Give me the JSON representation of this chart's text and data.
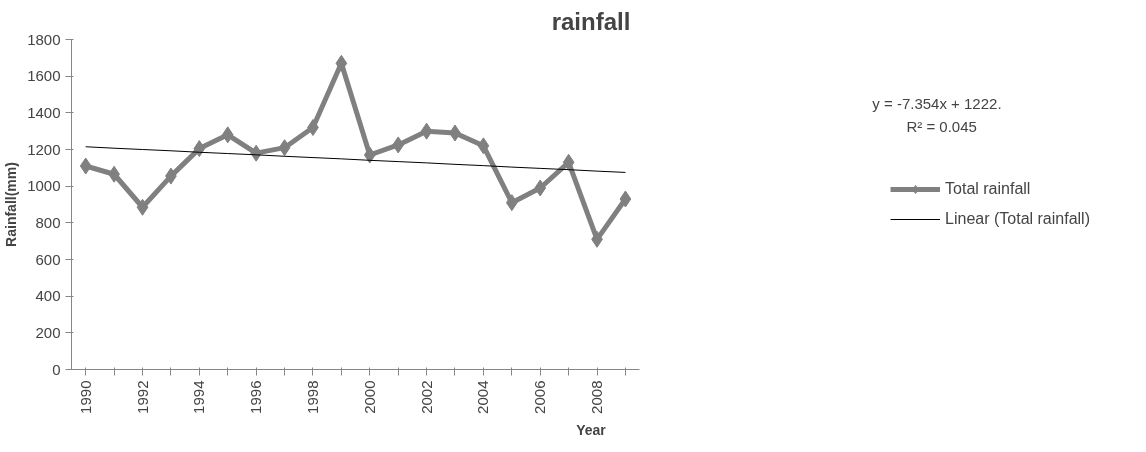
{
  "chart_data": {
    "type": "line",
    "title": "rainfall",
    "xlabel": "Year",
    "ylabel": "Rainfall(mm)",
    "categories": [
      "1990",
      null,
      "1992",
      null,
      "1994",
      null,
      "1996",
      null,
      "1998",
      null,
      "2000",
      null,
      "2002",
      null,
      "2004",
      null,
      "2006",
      null,
      "2008",
      null
    ],
    "series": [
      {
        "name": "Total rainfall",
        "color": "#808080",
        "marker": "diamond",
        "values": [
          1110,
          1065,
          885,
          1055,
          1205,
          1280,
          1180,
          1210,
          1320,
          1670,
          1170,
          1225,
          1300,
          1290,
          1220,
          910,
          990,
          1130,
          710,
          930
        ]
      },
      {
        "name": "Linear (Total rainfall)",
        "color": "#000000",
        "marker": "none",
        "values": [
          1215,
          1207,
          1200,
          1193,
          1185,
          1178,
          1171,
          1163,
          1156,
          1149,
          1141,
          1134,
          1127,
          1119,
          1112,
          1104,
          1097,
          1090,
          1082,
          1075
        ]
      }
    ],
    "ylim": [
      0,
      1800
    ],
    "yticks": [
      0,
      200,
      400,
      600,
      800,
      1000,
      1200,
      1400,
      1600,
      1800
    ],
    "annotations": [
      "y = -7.354x + 1222.",
      "R² = 0.045"
    ],
    "legend": "right",
    "grid": false,
    "line_style": "solid"
  }
}
